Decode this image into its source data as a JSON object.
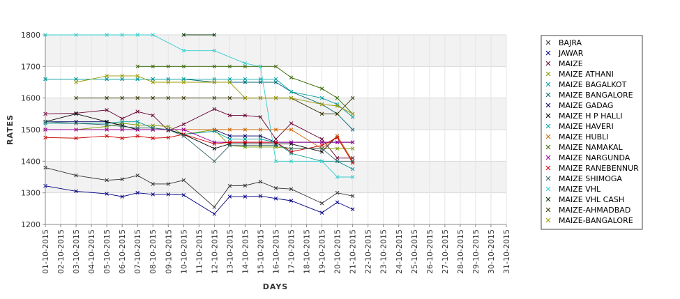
{
  "chart_data": {
    "type": "line",
    "title": "",
    "xlabel": "DAYS",
    "ylabel": "RATES",
    "ylim": [
      1200,
      1800
    ],
    "yticks": [
      1200,
      1300,
      1400,
      1500,
      1600,
      1700,
      1800
    ],
    "grid": "alternating horizontal bands",
    "legend_position": "right",
    "categories": [
      "01-10-2015",
      "02-10-2015",
      "03-10-2015",
      "04-10-2015",
      "05-10-2015",
      "06-10-2015",
      "07-10-2015",
      "08-10-2015",
      "09-10-2015",
      "10-10-2015",
      "11-10-2015",
      "12-10-2015",
      "13-10-2015",
      "14-10-2015",
      "15-10-2015",
      "16-10-2015",
      "17-10-2015",
      "18-10-2015",
      "19-10-2015",
      "20-10-2015",
      "21-10-2015",
      "22-10-2015",
      "23-10-2015",
      "24-10-2015",
      "25-10-2015",
      "26-10-2015",
      "27-10-2015",
      "28-10-2015",
      "29-10-2015",
      "30-10-2015",
      "31-10-2015"
    ],
    "series": [
      {
        "name": "BAJRA",
        "color": "#333333",
        "points": [
          [
            1,
            1380
          ],
          [
            3,
            1355
          ],
          [
            5,
            1340
          ],
          [
            6,
            1343
          ],
          [
            7,
            1355
          ],
          [
            8,
            1328
          ],
          [
            9,
            1328
          ],
          [
            10,
            1340
          ],
          [
            12,
            1255
          ],
          [
            13,
            1322
          ],
          [
            14,
            1323
          ],
          [
            15,
            1335
          ],
          [
            16,
            1315
          ],
          [
            17,
            1312
          ],
          [
            19,
            1267
          ],
          [
            20,
            1300
          ],
          [
            21,
            1290
          ]
        ]
      },
      {
        "name": "JAWAR",
        "color": "#000080",
        "points": [
          [
            1,
            1322
          ],
          [
            3,
            1305
          ],
          [
            5,
            1297
          ],
          [
            6,
            1288
          ],
          [
            7,
            1300
          ],
          [
            8,
            1295
          ],
          [
            9,
            1295
          ],
          [
            10,
            1293
          ],
          [
            12,
            1233
          ],
          [
            13,
            1288
          ],
          [
            14,
            1288
          ],
          [
            15,
            1290
          ],
          [
            16,
            1282
          ],
          [
            17,
            1275
          ],
          [
            19,
            1237
          ],
          [
            20,
            1270
          ],
          [
            21,
            1248
          ]
        ]
      },
      {
        "name": "MAIZE",
        "color": "#660033",
        "points": [
          [
            1,
            1550
          ],
          [
            3,
            1552
          ],
          [
            5,
            1562
          ],
          [
            6,
            1535
          ],
          [
            7,
            1557
          ],
          [
            8,
            1545
          ],
          [
            9,
            1497
          ],
          [
            10,
            1517
          ],
          [
            12,
            1565
          ],
          [
            13,
            1545
          ],
          [
            14,
            1545
          ],
          [
            15,
            1540
          ],
          [
            16,
            1470
          ],
          [
            17,
            1520
          ],
          [
            19,
            1470
          ],
          [
            20,
            1410
          ],
          [
            21,
            1410
          ]
        ]
      },
      {
        "name": "MAIZE ATHANI",
        "color": "#7a9b00",
        "points": [
          [
            1,
            1500
          ],
          [
            3,
            1500
          ],
          [
            5,
            1510
          ],
          [
            6,
            1520
          ],
          [
            7,
            1515
          ],
          [
            8,
            1513
          ],
          [
            9,
            1510
          ],
          [
            10,
            1485
          ],
          [
            12,
            1500
          ],
          [
            13,
            1450
          ],
          [
            14,
            1445
          ],
          [
            15,
            1445
          ],
          [
            16,
            1445
          ],
          [
            17,
            1440
          ],
          [
            19,
            1440
          ],
          [
            20,
            1440
          ],
          [
            21,
            1440
          ]
        ]
      },
      {
        "name": "MAIZE BAGALKOT",
        "color": "#009999",
        "points": [
          [
            1,
            1520
          ],
          [
            3,
            1520
          ],
          [
            5,
            1520
          ],
          [
            6,
            1525
          ],
          [
            7,
            1525
          ],
          [
            8,
            1505
          ],
          [
            9,
            1500
          ],
          [
            10,
            1485
          ],
          [
            12,
            1495
          ],
          [
            13,
            1470
          ],
          [
            14,
            1470
          ],
          [
            15,
            1470
          ],
          [
            16,
            1460
          ],
          [
            17,
            1425
          ],
          [
            19,
            1400
          ],
          [
            20,
            1400
          ],
          [
            21,
            1375
          ]
        ]
      },
      {
        "name": "MAIZE BANGALORE",
        "color": "#006677",
        "points": [
          [
            1,
            1660
          ],
          [
            3,
            1660
          ],
          [
            5,
            1660
          ],
          [
            6,
            1660
          ],
          [
            7,
            1660
          ],
          [
            8,
            1660
          ],
          [
            9,
            1660
          ],
          [
            10,
            1660
          ],
          [
            12,
            1650
          ],
          [
            13,
            1650
          ],
          [
            14,
            1650
          ],
          [
            15,
            1650
          ],
          [
            16,
            1650
          ],
          [
            17,
            1620
          ],
          [
            19,
            1580
          ],
          [
            20,
            1550
          ],
          [
            21,
            1500
          ]
        ]
      },
      {
        "name": "MAIZE GADAG",
        "color": "#000066",
        "points": [
          [
            1,
            1525
          ],
          [
            3,
            1525
          ],
          [
            5,
            1525
          ],
          [
            6,
            1513
          ],
          [
            7,
            1500
          ],
          [
            8,
            1500
          ],
          [
            9,
            1500
          ],
          [
            10,
            1500
          ],
          [
            12,
            1500
          ],
          [
            13,
            1480
          ],
          [
            14,
            1480
          ],
          [
            15,
            1480
          ],
          [
            16,
            1460
          ],
          [
            17,
            1460
          ],
          [
            19,
            1460
          ],
          [
            20,
            1460
          ],
          [
            21,
            1460
          ]
        ]
      },
      {
        "name": "MAIZE H P HALLI",
        "color": "#000000",
        "points": [
          [
            1,
            1525
          ],
          [
            3,
            1550
          ],
          [
            5,
            1525
          ],
          [
            6,
            1513
          ],
          [
            7,
            1500
          ],
          [
            8,
            1500
          ],
          [
            9,
            1500
          ],
          [
            10,
            1485
          ],
          [
            12,
            1440
          ],
          [
            13,
            1455
          ],
          [
            14,
            1455
          ],
          [
            15,
            1455
          ],
          [
            16,
            1455
          ],
          [
            17,
            1455
          ],
          [
            19,
            1430
          ],
          [
            20,
            1480
          ],
          [
            21,
            1400
          ]
        ]
      },
      {
        "name": "MAIZE HAVERI",
        "color": "#00a0a0",
        "points": [
          [
            1,
            1660
          ],
          [
            3,
            1660
          ],
          [
            5,
            1660
          ],
          [
            6,
            1660
          ],
          [
            7,
            1660
          ],
          [
            8,
            1660
          ],
          [
            9,
            1660
          ],
          [
            10,
            1660
          ],
          [
            12,
            1660
          ],
          [
            13,
            1660
          ],
          [
            14,
            1660
          ],
          [
            15,
            1660
          ],
          [
            16,
            1660
          ],
          [
            17,
            1620
          ],
          [
            19,
            1600
          ],
          [
            20,
            1580
          ],
          [
            21,
            1540
          ]
        ]
      },
      {
        "name": "MAIZE HUBLI",
        "color": "#cc6600",
        "points": [
          [
            1,
            1500
          ],
          [
            3,
            1500
          ],
          [
            5,
            1500
          ],
          [
            6,
            1500
          ],
          [
            7,
            1500
          ],
          [
            8,
            1500
          ],
          [
            9,
            1500
          ],
          [
            10,
            1500
          ],
          [
            12,
            1500
          ],
          [
            13,
            1500
          ],
          [
            14,
            1500
          ],
          [
            15,
            1500
          ],
          [
            16,
            1500
          ],
          [
            17,
            1500
          ],
          [
            19,
            1440
          ],
          [
            20,
            1480
          ],
          [
            21,
            1400
          ]
        ]
      },
      {
        "name": "MAIZE NAMAKAL",
        "color": "#336600",
        "points": [
          [
            7,
            1700
          ],
          [
            8,
            1700
          ],
          [
            9,
            1700
          ],
          [
            10,
            1700
          ],
          [
            12,
            1700
          ],
          [
            13,
            1700
          ],
          [
            14,
            1700
          ],
          [
            15,
            1700
          ],
          [
            16,
            1700
          ],
          [
            17,
            1665
          ],
          [
            19,
            1630
          ],
          [
            20,
            1600
          ],
          [
            21,
            1550
          ]
        ]
      },
      {
        "name": "MAIZE NARGUNDA",
        "color": "#990099",
        "points": [
          [
            1,
            1500
          ],
          [
            3,
            1500
          ],
          [
            5,
            1500
          ],
          [
            6,
            1500
          ],
          [
            7,
            1500
          ],
          [
            8,
            1500
          ],
          [
            9,
            1500
          ],
          [
            10,
            1500
          ],
          [
            12,
            1460
          ],
          [
            13,
            1460
          ],
          [
            14,
            1460
          ],
          [
            15,
            1460
          ],
          [
            16,
            1460
          ],
          [
            17,
            1460
          ],
          [
            19,
            1460
          ],
          [
            20,
            1460
          ],
          [
            21,
            1460
          ]
        ]
      },
      {
        "name": "MAIZE RANEBENNUR",
        "color": "#cc0000",
        "points": [
          [
            1,
            1475
          ],
          [
            3,
            1473
          ],
          [
            5,
            1480
          ],
          [
            6,
            1473
          ],
          [
            7,
            1480
          ],
          [
            8,
            1473
          ],
          [
            9,
            1475
          ],
          [
            10,
            1485
          ],
          [
            12,
            1455
          ],
          [
            13,
            1460
          ],
          [
            14,
            1460
          ],
          [
            15,
            1460
          ],
          [
            16,
            1460
          ],
          [
            17,
            1430
          ],
          [
            19,
            1450
          ],
          [
            20,
            1475
          ],
          [
            21,
            1395
          ]
        ]
      },
      {
        "name": "MAIZE SHIMOGA",
        "color": "#336666",
        "points": [
          [
            1,
            1525
          ],
          [
            3,
            1520
          ],
          [
            5,
            1515
          ],
          [
            6,
            1510
          ],
          [
            7,
            1505
          ],
          [
            8,
            1505
          ],
          [
            9,
            1500
          ],
          [
            10,
            1480
          ],
          [
            12,
            1400
          ],
          [
            13,
            1450
          ],
          [
            14,
            1450
          ],
          [
            15,
            1450
          ],
          [
            16,
            1450
          ],
          [
            17,
            1440
          ],
          [
            19,
            1440
          ],
          [
            20,
            1400
          ],
          [
            21,
            1400
          ]
        ]
      },
      {
        "name": "MAIZE VHL",
        "color": "#33cccc",
        "points": [
          [
            1,
            1800
          ],
          [
            3,
            1800
          ],
          [
            5,
            1800
          ],
          [
            6,
            1800
          ],
          [
            7,
            1800
          ],
          [
            8,
            1800
          ],
          [
            10,
            1750
          ],
          [
            12,
            1750
          ],
          [
            14,
            1710
          ],
          [
            15,
            1700
          ],
          [
            16,
            1400
          ],
          [
            17,
            1400
          ],
          [
            19,
            1400
          ],
          [
            20,
            1350
          ],
          [
            21,
            1350
          ]
        ]
      },
      {
        "name": "MAIZE VHL CASH",
        "color": "#003300",
        "points": [
          [
            10,
            1800
          ],
          [
            12,
            1800
          ]
        ]
      },
      {
        "name": "MAIZE-AHMADBAD",
        "color": "#333300",
        "points": [
          [
            3,
            1600
          ],
          [
            5,
            1600
          ],
          [
            6,
            1600
          ],
          [
            7,
            1600
          ],
          [
            8,
            1600
          ],
          [
            9,
            1600
          ],
          [
            10,
            1600
          ],
          [
            12,
            1600
          ],
          [
            13,
            1600
          ],
          [
            14,
            1600
          ],
          [
            15,
            1600
          ],
          [
            16,
            1600
          ],
          [
            17,
            1600
          ],
          [
            19,
            1550
          ],
          [
            20,
            1550
          ],
          [
            21,
            1600
          ]
        ]
      },
      {
        "name": "MAIZE-BANGALORE",
        "color": "#999900",
        "points": [
          [
            3,
            1650
          ],
          [
            5,
            1670
          ],
          [
            6,
            1670
          ],
          [
            7,
            1670
          ],
          [
            8,
            1650
          ],
          [
            9,
            1650
          ],
          [
            10,
            1650
          ],
          [
            12,
            1650
          ],
          [
            13,
            1650
          ],
          [
            14,
            1600
          ],
          [
            15,
            1600
          ],
          [
            16,
            1600
          ],
          [
            17,
            1600
          ],
          [
            19,
            1580
          ],
          [
            20,
            1575
          ],
          [
            21,
            1550
          ]
        ]
      }
    ]
  }
}
